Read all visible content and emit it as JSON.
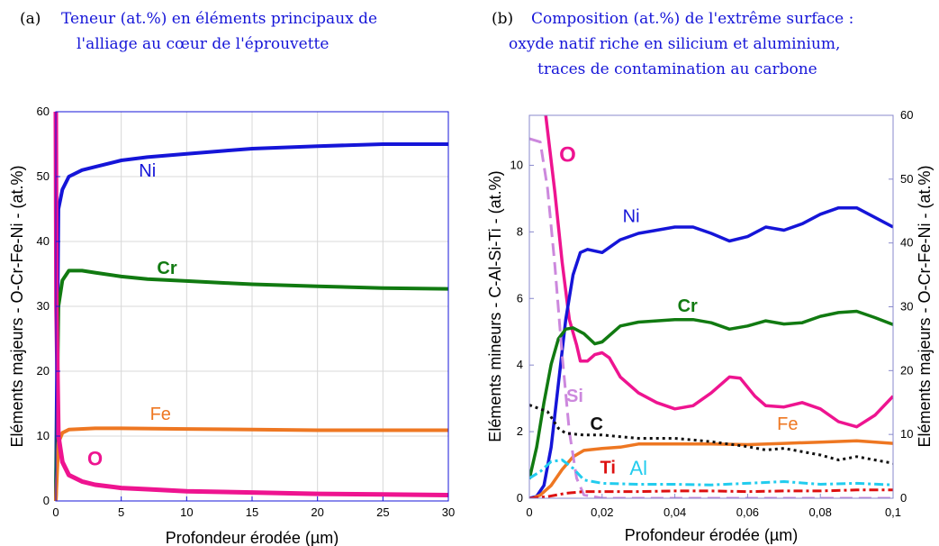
{
  "chart_data": [
    {
      "type": "line",
      "panel_label": "(a)",
      "title": [
        "Teneur (at.%) en éléments principaux de",
        "l'alliage au cœur de l'éprouvette"
      ],
      "xlabel": "Profondeur érodée (µm)",
      "ylabel": "Eléments majeurs - O-Cr-Fe-Ni - (at.%)",
      "xlim": [
        0,
        30
      ],
      "ylim": [
        0,
        60
      ],
      "x_ticks": [
        0,
        5,
        10,
        15,
        20,
        25,
        30
      ],
      "y_ticks": [
        0,
        10,
        20,
        30,
        40,
        50,
        60
      ],
      "grid": true,
      "series": [
        {
          "name": "Ni",
          "color": "#1515d8",
          "x": [
            0,
            0.2,
            0.5,
            1,
            2,
            3,
            5,
            7,
            10,
            13,
            15,
            20,
            25,
            30
          ],
          "y": [
            0,
            45,
            48,
            50,
            51,
            51.5,
            52.5,
            53,
            53.5,
            54,
            54.3,
            54.7,
            55,
            55
          ]
        },
        {
          "name": "Cr",
          "color": "#117a11",
          "x": [
            0,
            0.2,
            0.5,
            1,
            2,
            3,
            5,
            7,
            10,
            13,
            15,
            20,
            25,
            30
          ],
          "y": [
            0,
            30,
            34,
            35.5,
            35.5,
            35.2,
            34.6,
            34.2,
            33.9,
            33.6,
            33.4,
            33.1,
            32.8,
            32.7
          ]
        },
        {
          "name": "Fe",
          "color": "#ee7722",
          "x": [
            0,
            0.2,
            0.5,
            1,
            3,
            5,
            10,
            15,
            20,
            25,
            30
          ],
          "y": [
            0,
            9,
            10.5,
            11,
            11.2,
            11.2,
            11.1,
            11,
            10.9,
            10.9,
            10.9
          ]
        },
        {
          "name": "O",
          "color": "#ee1490",
          "x": [
            0,
            0.05,
            0.2,
            0.5,
            1,
            2,
            3,
            5,
            7,
            10,
            15,
            20,
            25,
            30
          ],
          "y": [
            60,
            30,
            10,
            6,
            4,
            3,
            2.5,
            2,
            1.8,
            1.5,
            1.3,
            1.1,
            1.0,
            0.9
          ]
        }
      ]
    },
    {
      "type": "line",
      "panel_label": "(b)",
      "title": [
        "Composition (at.%) de l'extrême surface :",
        "oxyde natif riche en silicium et aluminium,",
        "traces de contamination au carbone"
      ],
      "xlabel": "Profondeur érodée (µm)",
      "ylabel_left": "Eléments mineurs - C-Al-Si-Ti - (at.%)",
      "ylabel_right": "Eléments majeurs - O-Cr-Fe-Ni - (at.%)",
      "xlim": [
        0,
        0.1
      ],
      "ylim_left": [
        0,
        11.5
      ],
      "ylim_right": [
        0,
        60
      ],
      "x_ticks": [
        0,
        0.02,
        0.04,
        0.06,
        0.08,
        0.1
      ],
      "x_tick_labels": [
        "0",
        "0,02",
        "0,04",
        "0,06",
        "0,08",
        "0,1"
      ],
      "y_ticks_left": [
        0,
        2,
        4,
        6,
        8,
        10
      ],
      "y_ticks_right": [
        0,
        10,
        20,
        30,
        40,
        50,
        60
      ],
      "grid": false,
      "series": [
        {
          "name": "O",
          "axis": "right",
          "color": "#ee1490",
          "style": "solid",
          "x": [
            0.0045,
            0.007,
            0.009,
            0.011,
            0.013,
            0.014,
            0.016,
            0.018,
            0.02,
            0.022,
            0.025,
            0.03,
            0.035,
            0.04,
            0.045,
            0.05,
            0.055,
            0.058,
            0.062,
            0.065,
            0.07,
            0.075,
            0.08,
            0.085,
            0.09,
            0.095,
            0.1
          ],
          "y": [
            60,
            48,
            37,
            28,
            24,
            21.5,
            21.5,
            22.5,
            22.8,
            22,
            19,
            16.5,
            15,
            14,
            14.5,
            16.5,
            19,
            18.8,
            16,
            14.5,
            14.3,
            15,
            14,
            12,
            11.2,
            13,
            16
          ]
        },
        {
          "name": "Ni",
          "axis": "right",
          "color": "#1515d8",
          "style": "solid",
          "x": [
            0,
            0.002,
            0.004,
            0.006,
            0.008,
            0.01,
            0.012,
            0.014,
            0.016,
            0.02,
            0.025,
            0.03,
            0.035,
            0.04,
            0.045,
            0.05,
            0.055,
            0.06,
            0.065,
            0.07,
            0.075,
            0.08,
            0.085,
            0.09,
            0.095,
            0.1
          ],
          "y": [
            0,
            0.3,
            2,
            8,
            18,
            28,
            35,
            38.5,
            39,
            38.5,
            40.5,
            41.5,
            42,
            42.5,
            42.5,
            41.5,
            40.3,
            41,
            42.5,
            42,
            43,
            44.5,
            45.5,
            45.5,
            44,
            42.5
          ]
        },
        {
          "name": "Cr",
          "axis": "right",
          "color": "#117a11",
          "style": "solid",
          "x": [
            0,
            0.002,
            0.004,
            0.006,
            0.008,
            0.01,
            0.012,
            0.015,
            0.018,
            0.02,
            0.025,
            0.03,
            0.035,
            0.04,
            0.045,
            0.05,
            0.055,
            0.06,
            0.065,
            0.07,
            0.075,
            0.08,
            0.085,
            0.09,
            0.095,
            0.1
          ],
          "y": [
            3,
            8,
            15,
            21,
            25,
            26.5,
            26.7,
            25.8,
            24.2,
            24.5,
            27,
            27.6,
            27.8,
            28,
            28,
            27.5,
            26.5,
            27,
            27.8,
            27.3,
            27.5,
            28.5,
            29.1,
            29.3,
            28.3,
            27.2
          ]
        },
        {
          "name": "Fe",
          "axis": "right",
          "color": "#ee7722",
          "style": "solid",
          "x": [
            0.001,
            0.003,
            0.006,
            0.009,
            0.012,
            0.015,
            0.02,
            0.025,
            0.03,
            0.04,
            0.05,
            0.06,
            0.07,
            0.08,
            0.09,
            0.1
          ],
          "y": [
            0,
            0.5,
            2,
            4.5,
            6.5,
            7.5,
            7.8,
            8,
            8.5,
            8.5,
            8.5,
            8.4,
            8.6,
            8.8,
            9,
            8.6
          ]
        },
        {
          "name": "Si",
          "axis": "left",
          "color": "#cc88dd",
          "style": "dashed",
          "x": [
            0,
            0.003,
            0.005,
            0.007,
            0.009,
            0.011,
            0.013,
            0.015,
            0.02,
            0.03,
            0.04,
            0.05,
            0.06,
            0.07,
            0.08,
            0.09,
            0.1
          ],
          "y": [
            10.8,
            10.7,
            9.3,
            7,
            4.3,
            2,
            0.6,
            0.1,
            0,
            0,
            0,
            0,
            0,
            0,
            0,
            0,
            0
          ]
        },
        {
          "name": "C",
          "axis": "left",
          "color": "#111111",
          "style": "dotted",
          "x": [
            0,
            0.005,
            0.008,
            0.01,
            0.015,
            0.02,
            0.03,
            0.04,
            0.045,
            0.05,
            0.06,
            0.065,
            0.07,
            0.08,
            0.085,
            0.09,
            0.095,
            0.1
          ],
          "y": [
            2.8,
            2.6,
            2.1,
            1.95,
            1.9,
            1.9,
            1.8,
            1.8,
            1.75,
            1.7,
            1.55,
            1.45,
            1.5,
            1.3,
            1.15,
            1.25,
            1.15,
            1.05
          ]
        },
        {
          "name": "Al",
          "axis": "left",
          "color": "#22ccee",
          "style": "dashdot",
          "x": [
            0,
            0.003,
            0.006,
            0.009,
            0.012,
            0.015,
            0.02,
            0.03,
            0.04,
            0.05,
            0.06,
            0.07,
            0.08,
            0.09,
            0.1
          ],
          "y": [
            0.6,
            0.8,
            1.1,
            1.15,
            0.9,
            0.55,
            0.45,
            0.42,
            0.42,
            0.4,
            0.45,
            0.5,
            0.42,
            0.45,
            0.4
          ]
        },
        {
          "name": "Ti",
          "axis": "left",
          "color": "#dd1111",
          "style": "dashdot",
          "x": [
            0,
            0.005,
            0.01,
            0.015,
            0.02,
            0.03,
            0.04,
            0.05,
            0.06,
            0.07,
            0.08,
            0.09,
            0.1
          ],
          "y": [
            0,
            0.05,
            0.15,
            0.2,
            0.2,
            0.2,
            0.22,
            0.22,
            0.2,
            0.22,
            0.22,
            0.25,
            0.25
          ]
        }
      ]
    }
  ]
}
